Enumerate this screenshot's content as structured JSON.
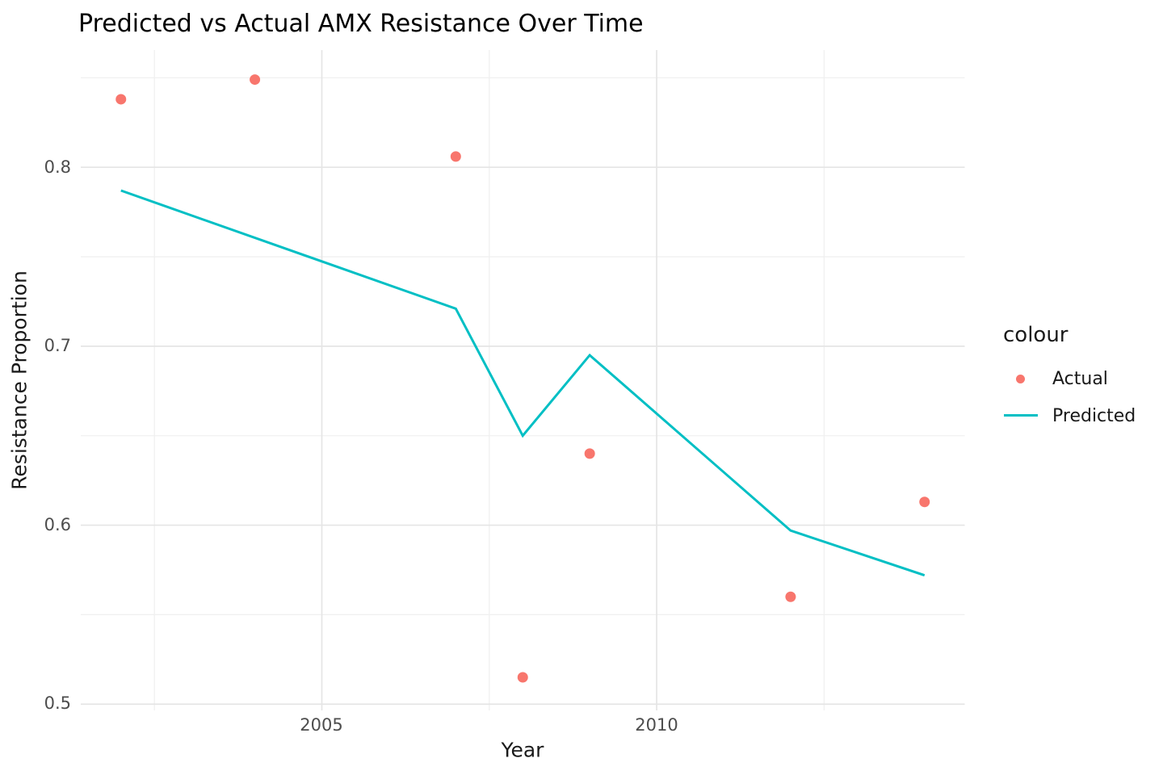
{
  "title": "Predicted vs Actual AMX Resistance Over Time",
  "x_axis": {
    "label": "Year",
    "tick_labels": [
      "2005",
      "2010"
    ]
  },
  "y_axis": {
    "label": "Resistance Proportion",
    "tick_labels": [
      "0.5",
      "0.6",
      "0.7",
      "0.8"
    ]
  },
  "legend": {
    "title": "colour",
    "items": [
      {
        "label": "Actual",
        "marker": "point",
        "color": "#F8766D"
      },
      {
        "label": "Predicted",
        "marker": "line",
        "color": "#00BFC4"
      }
    ]
  },
  "colors": {
    "actual": "#F8766D",
    "predicted": "#00BFC4",
    "grid_major": "#E5E5E5",
    "grid_minor": "#F0F0F0",
    "tick_text": "#4D4D4D",
    "background": "#FFFFFF"
  },
  "chart_data": {
    "type": "line",
    "title": "Predicted vs Actual AMX Resistance Over Time",
    "xlabel": "Year",
    "ylabel": "Resistance Proportion",
    "xlim": [
      2001.4,
      2014.6
    ],
    "ylim": [
      0.4965,
      0.8655
    ],
    "x_major_ticks": [
      2005,
      2010
    ],
    "x_minor_ticks": [
      2002.5,
      2007.5,
      2012.5
    ],
    "y_major_ticks": [
      0.5,
      0.6,
      0.7,
      0.8
    ],
    "y_minor_ticks": [
      0.55,
      0.65,
      0.75,
      0.85
    ],
    "grid": true,
    "legend_position": "right",
    "series": [
      {
        "name": "Actual",
        "mode": "scatter",
        "color": "#F8766D",
        "x": [
          2002,
          2004,
          2007,
          2008,
          2009,
          2012,
          2014
        ],
        "y": [
          0.838,
          0.849,
          0.806,
          0.515,
          0.64,
          0.56,
          0.613
        ]
      },
      {
        "name": "Predicted",
        "mode": "line",
        "color": "#00BFC4",
        "x": [
          2002,
          2007,
          2008,
          2009,
          2012,
          2014
        ],
        "y": [
          0.787,
          0.721,
          0.65,
          0.695,
          0.597,
          0.572
        ]
      }
    ]
  }
}
